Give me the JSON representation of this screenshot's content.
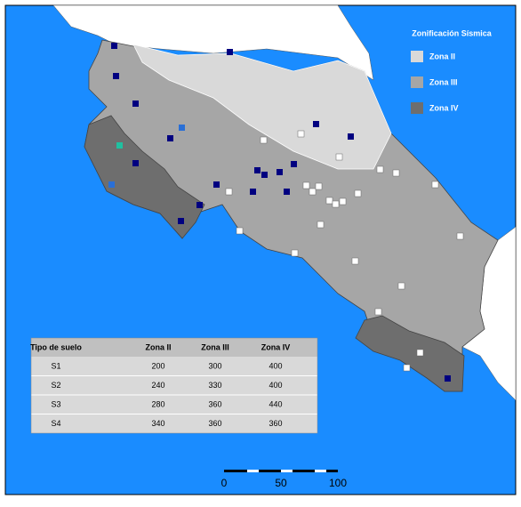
{
  "legend": {
    "title": "Zonificación Sísmica",
    "items": [
      "Zona II",
      "Zona III",
      "Zona IV"
    ]
  },
  "table": {
    "header": [
      "Tipo de suelo",
      "Zona II",
      "Zona III",
      "Zona IV"
    ],
    "rows": [
      [
        "S1",
        200,
        300,
        400
      ],
      [
        "S2",
        240,
        330,
        400
      ],
      [
        "S3",
        280,
        360,
        440
      ],
      [
        "S4",
        340,
        360,
        360
      ]
    ]
  },
  "scale_bar": {
    "labels": [
      0,
      50,
      100
    ]
  }
}
